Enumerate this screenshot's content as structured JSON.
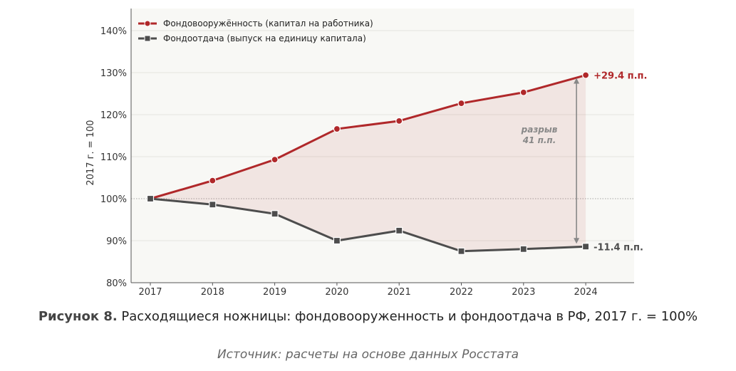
{
  "chart_data": {
    "type": "line",
    "categories": [
      "2017",
      "2018",
      "2019",
      "2020",
      "2021",
      "2022",
      "2023",
      "2024"
    ],
    "series": [
      {
        "name": "Фондовооружённость (капитал на работника)",
        "values": [
          100.0,
          104.3,
          109.3,
          116.6,
          118.5,
          122.7,
          125.3,
          129.4
        ],
        "color": "#b0282a",
        "marker": "circle",
        "end_label": "+29.4 п.п."
      },
      {
        "name": "Фондоотдача (выпуск на единицу капитала)",
        "values": [
          100.0,
          98.6,
          96.4,
          90.0,
          92.4,
          87.5,
          88.0,
          88.6
        ],
        "color": "#4d4d4d",
        "marker": "square",
        "end_label": "-11.4 п.п."
      }
    ],
    "ylabel": "2017 г. = 100",
    "ylim": [
      80,
      140
    ],
    "yticks": [
      "80%",
      "90%",
      "100%",
      "110%",
      "120%",
      "130%",
      "140%"
    ],
    "grid": true,
    "legend": "top-left",
    "baseline": 100,
    "gap_annotation": [
      "разрыв",
      "41 п.п."
    ],
    "background": "#f8f8f5"
  },
  "caption": {
    "label": "Рисунок 8.",
    "text": "Расходящиеся ножницы: фондовооруженность и фондоотдача в РФ, 2017 г. = 100%",
    "source": "Источник: расчеты на основе данных Росстата"
  }
}
